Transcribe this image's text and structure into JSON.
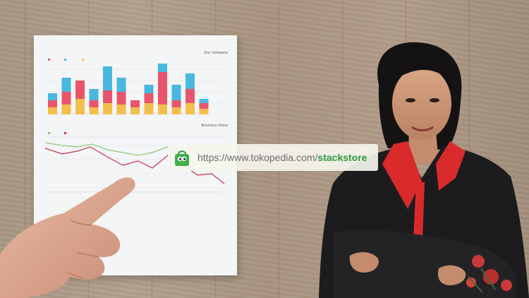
{
  "banner": {
    "url_prefix": "https://www.tokopedia.com/",
    "url_store": "stackstore"
  },
  "paper": {
    "top_chart_title": "Our company",
    "bottom_chart_title": "Business items"
  },
  "colors": {
    "bar_red": "#e8556b",
    "bar_yellow": "#f2bf4c",
    "bar_blue": "#49b8e0",
    "line_red": "#c9304b",
    "line_green": "#8cc878",
    "brand_green": "#2f9a3c",
    "jacket": "#1c1c1f",
    "collar": "#d92b2b"
  },
  "icons": [
    "shopping-bag-icon"
  ]
}
